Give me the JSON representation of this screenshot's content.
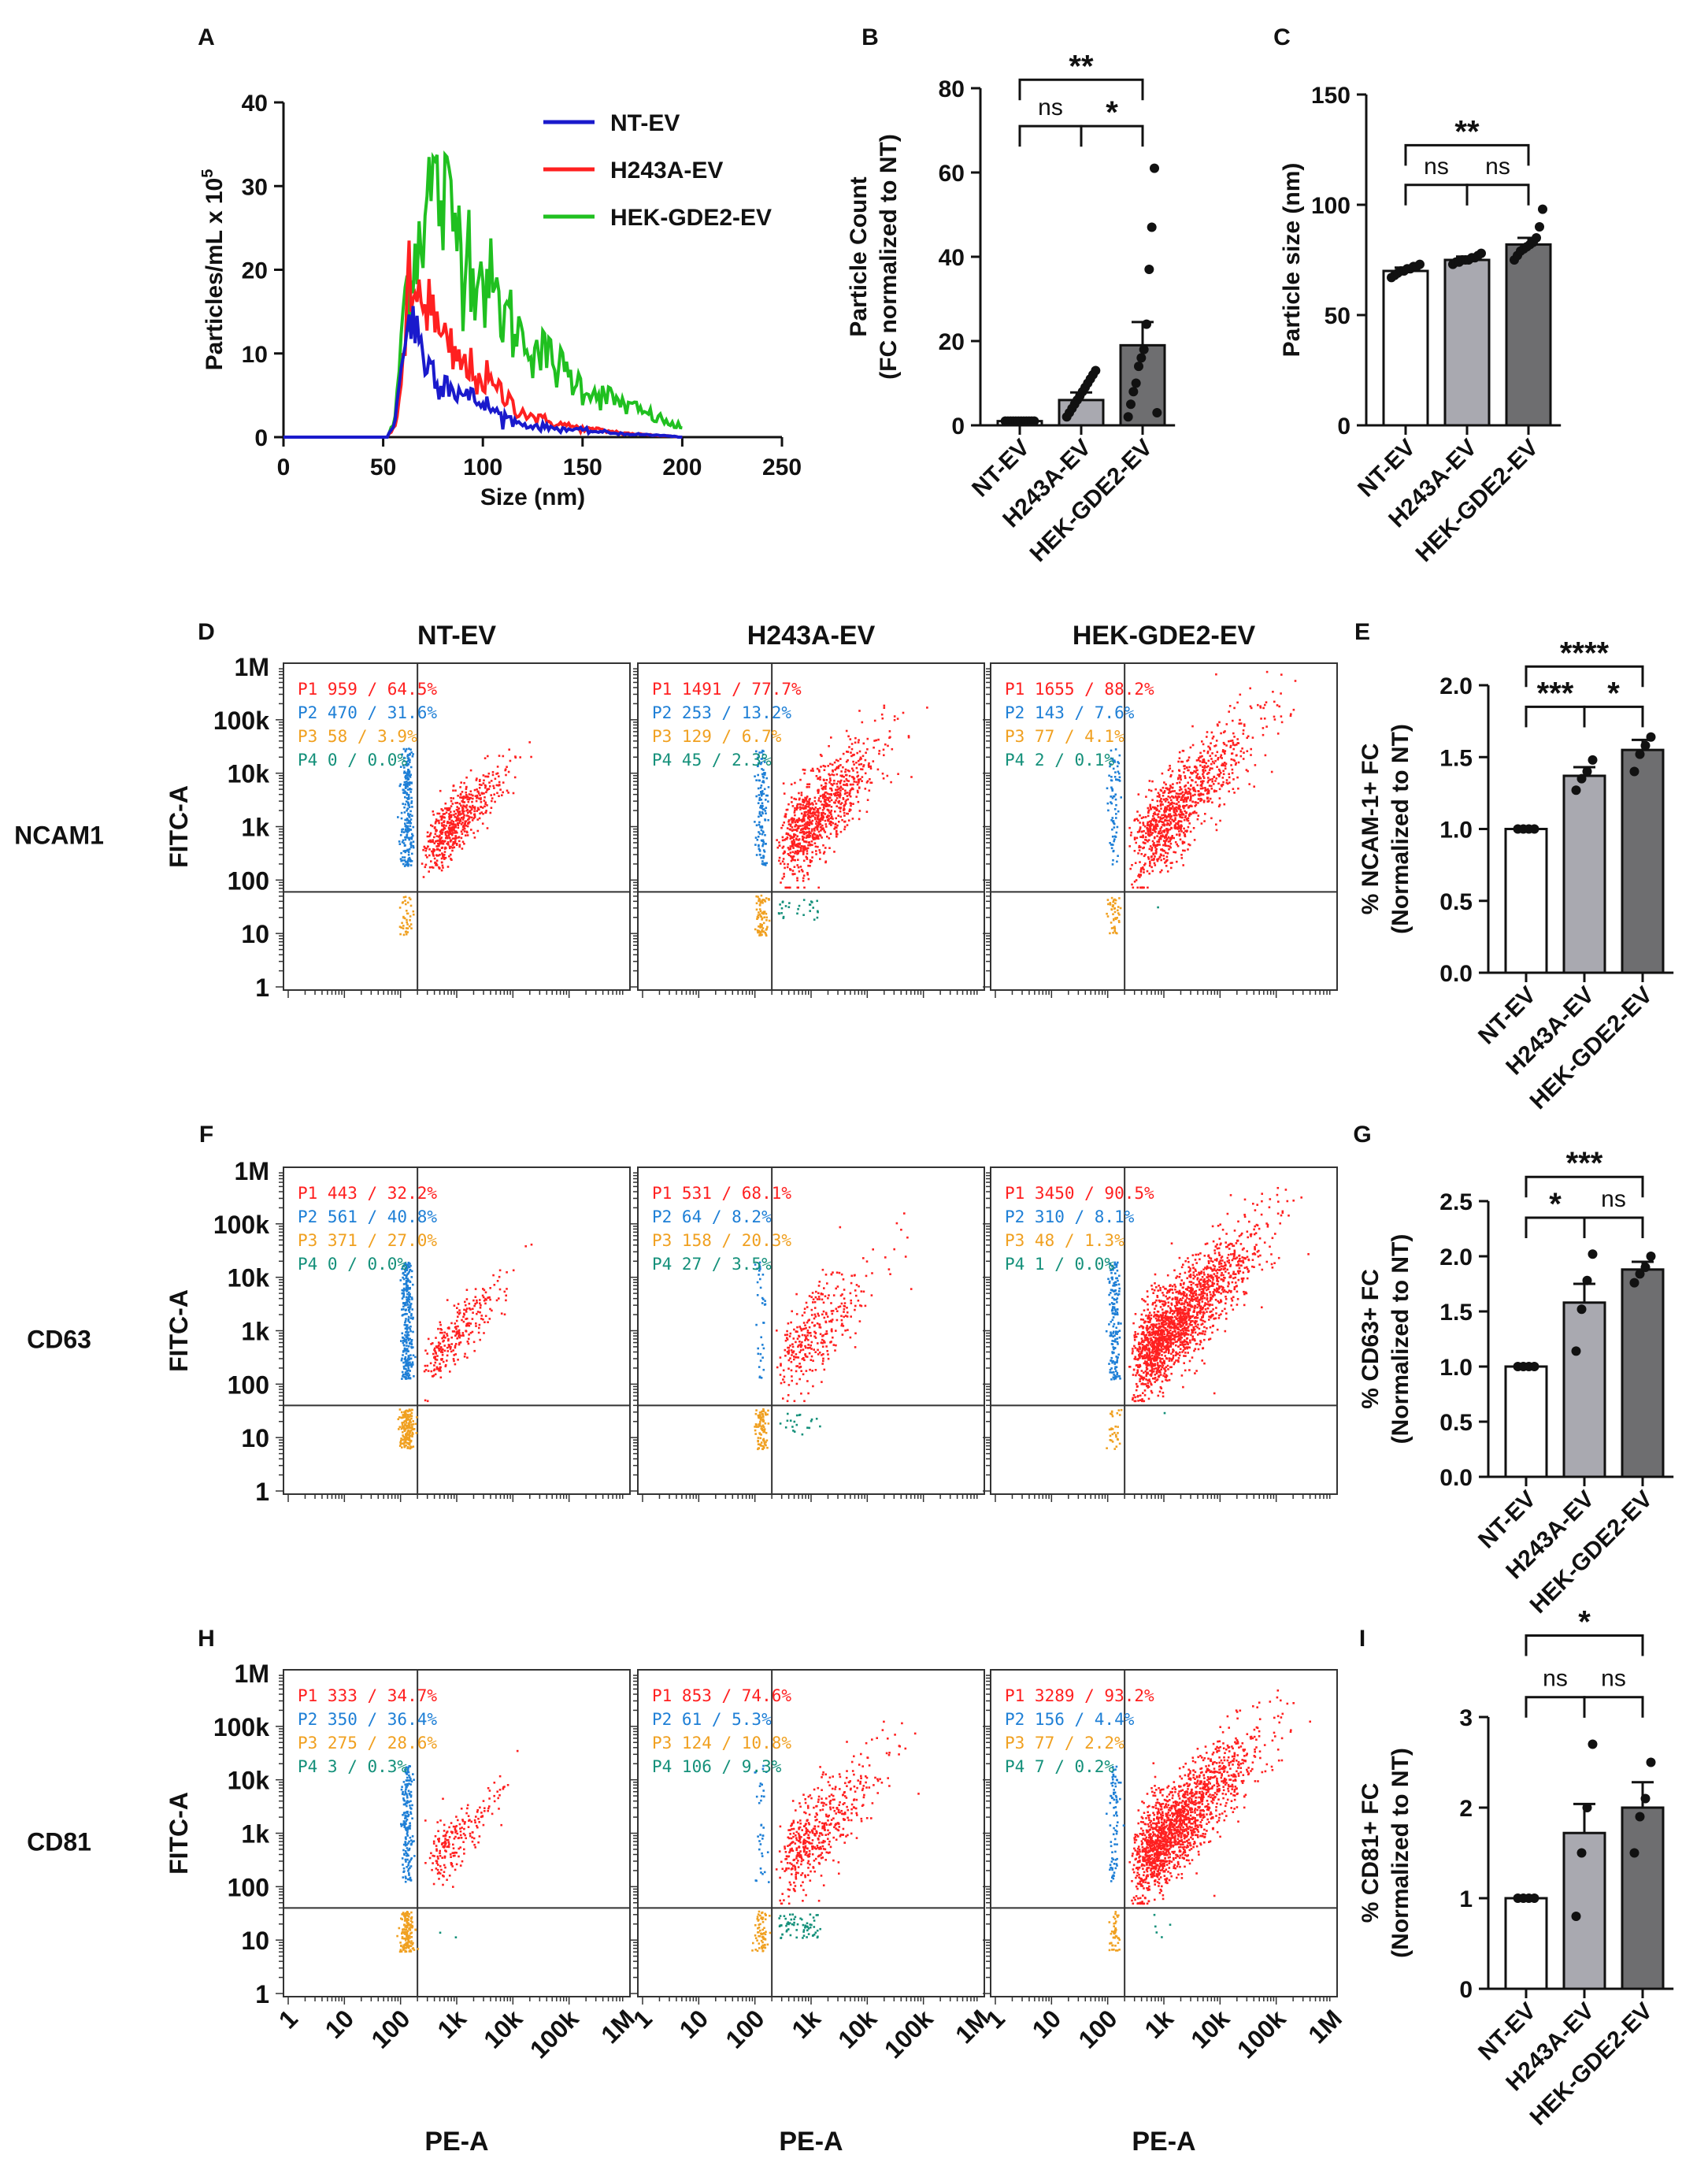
{
  "figure_labels": {
    "A": "A",
    "B": "B",
    "C": "C",
    "D": "D",
    "E": "E",
    "F": "F",
    "G": "G",
    "H": "H",
    "I": "I"
  },
  "colors": {
    "nt": "#1a1acc",
    "h243a": "#ff2020",
    "hek": "#20c020",
    "p1": "#ff2020",
    "p2": "#1e7fd6",
    "p3": "#f0a020",
    "p4": "#14907a",
    "bar_light": "#a9a9b0",
    "bar_dark": "#6e6e70"
  },
  "chart_data": [
    {
      "id": "A",
      "type": "line",
      "title": "",
      "xlabel": "Size (nm)",
      "ylabel_prefix": "Particles/mL x 10",
      "ylabel_exp": "5",
      "xlim": [
        0,
        250
      ],
      "ylim": [
        0,
        40
      ],
      "xticks": [
        0,
        50,
        100,
        150,
        200,
        250
      ],
      "yticks": [
        0,
        10,
        20,
        30,
        40
      ],
      "series": [
        {
          "name": "NT-EV",
          "color": "#1a1acc",
          "x": [
            0,
            45,
            52,
            56,
            60,
            63,
            66,
            70,
            75,
            80,
            90,
            100,
            110,
            120,
            130,
            140,
            150,
            160,
            170,
            180,
            190,
            200
          ],
          "values": [
            0,
            0,
            0,
            2,
            10,
            15,
            13,
            10,
            8,
            7,
            5,
            4,
            2.5,
            1.5,
            1.2,
            1,
            0.8,
            0.6,
            0.4,
            0.3,
            0.2,
            0
          ]
        },
        {
          "name": "H243A-EV",
          "color": "#ff2020",
          "x": [
            0,
            45,
            52,
            56,
            60,
            63,
            66,
            70,
            75,
            80,
            90,
            100,
            110,
            120,
            130,
            140,
            150,
            160,
            170,
            180,
            190,
            200
          ],
          "values": [
            0,
            0,
            0,
            1.5,
            8,
            17,
            16,
            18,
            14,
            11,
            8.5,
            7,
            5,
            3,
            2,
            1.5,
            1,
            0.8,
            0.5,
            0.3,
            0.2,
            0
          ]
        },
        {
          "name": "HEK-GDE2-EV",
          "color": "#20c020",
          "x": [
            0,
            45,
            52,
            56,
            60,
            63,
            66,
            70,
            75,
            80,
            90,
            100,
            110,
            120,
            130,
            140,
            150,
            160,
            170,
            180,
            190,
            200
          ],
          "values": [
            0,
            0,
            0,
            2,
            15,
            20,
            22,
            27,
            30,
            28,
            24,
            19,
            15,
            12,
            10,
            8,
            6,
            5,
            4,
            3,
            2,
            1
          ]
        }
      ]
    },
    {
      "id": "B",
      "type": "bar",
      "ylabel_line1": "Particle Count",
      "ylabel_line2": "(FC normalized to NT)",
      "ylim": [
        0,
        80
      ],
      "yticks": [
        0,
        20,
        40,
        60,
        80
      ],
      "categories": [
        "NT-EV",
        "H243A-EV",
        "HEK-GDE2-EV"
      ],
      "values": [
        1,
        6,
        19
      ],
      "errors": [
        0.2,
        1.8,
        5.5
      ],
      "points": [
        [
          1,
          1,
          1,
          1,
          1,
          1,
          1,
          1,
          1,
          1,
          1,
          1
        ],
        [
          2,
          3,
          4,
          5,
          6,
          7,
          8,
          9,
          10,
          11,
          12,
          13
        ],
        [
          2,
          5,
          8,
          10,
          14,
          16,
          18,
          24,
          37,
          47,
          61,
          3
        ]
      ],
      "comparisons": [
        {
          "from": 0,
          "to": 1,
          "label": "ns",
          "y": 71
        },
        {
          "from": 1,
          "to": 2,
          "label": "*",
          "y": 71
        },
        {
          "from": 0,
          "to": 2,
          "label": "**",
          "y": 82
        }
      ]
    },
    {
      "id": "C",
      "type": "bar",
      "ylabel_line1": "Particle size (nm)",
      "ylabel_line2": "",
      "ylim": [
        0,
        150
      ],
      "yticks": [
        0,
        50,
        100,
        150
      ],
      "categories": [
        "NT-EV",
        "H243A-EV",
        "HEK-GDE2-EV"
      ],
      "values": [
        70,
        75,
        82
      ],
      "errors": [
        1.5,
        1.5,
        3
      ],
      "points": [
        [
          67,
          68,
          69,
          70,
          70,
          71,
          71,
          72,
          72,
          73
        ],
        [
          73,
          74,
          74,
          75,
          75,
          75,
          76,
          76,
          77,
          78
        ],
        [
          75,
          77,
          79,
          80,
          81,
          82,
          83,
          85,
          90,
          98
        ]
      ],
      "comparisons": [
        {
          "from": 0,
          "to": 1,
          "label": "ns",
          "y": 109
        },
        {
          "from": 1,
          "to": 2,
          "label": "ns",
          "y": 109
        },
        {
          "from": 0,
          "to": 2,
          "label": "**",
          "y": 127
        }
      ]
    },
    {
      "id": "E",
      "type": "bar",
      "ylabel_line1": "% NCAM-1+ FC",
      "ylabel_line2": "(Normalized to NT)",
      "ylim": [
        0,
        2.0
      ],
      "yticks": [
        "0.0",
        "0.5",
        "1.0",
        "1.5",
        "2.0"
      ],
      "categories": [
        "NT-EV",
        "H243A-EV",
        "HEK-GDE2-EV"
      ],
      "values": [
        1.0,
        1.37,
        1.55
      ],
      "errors": [
        0.01,
        0.06,
        0.07
      ],
      "points": [
        [
          1.0,
          1.0,
          1.0,
          1.0
        ],
        [
          1.27,
          1.35,
          1.4,
          1.48
        ],
        [
          1.4,
          1.52,
          1.58,
          1.64
        ]
      ],
      "comparisons": [
        {
          "from": 0,
          "to": 1,
          "label": "***",
          "y": 1.85
        },
        {
          "from": 1,
          "to": 2,
          "label": "*",
          "y": 1.85
        },
        {
          "from": 0,
          "to": 2,
          "label": "****",
          "y": 2.13
        }
      ]
    },
    {
      "id": "G",
      "type": "bar",
      "ylabel_line1": "% CD63+ FC",
      "ylabel_line2": "(Normalized to NT)",
      "ylim": [
        0,
        2.5
      ],
      "yticks": [
        "0.0",
        "0.5",
        "1.0",
        "1.5",
        "2.0",
        "2.5"
      ],
      "categories": [
        "NT-EV",
        "H243A-EV",
        "HEK-GDE2-EV"
      ],
      "values": [
        1.0,
        1.58,
        1.88
      ],
      "errors": [
        0.01,
        0.17,
        0.07
      ],
      "points": [
        [
          1.0,
          1.0,
          1.0,
          1.0
        ],
        [
          1.14,
          1.52,
          1.78,
          2.02
        ],
        [
          1.76,
          1.84,
          1.9,
          2.0
        ]
      ],
      "comparisons": [
        {
          "from": 0,
          "to": 1,
          "label": "*",
          "y": 2.35
        },
        {
          "from": 1,
          "to": 2,
          "label": "ns",
          "y": 2.35
        },
        {
          "from": 0,
          "to": 2,
          "label": "***",
          "y": 2.72
        }
      ]
    },
    {
      "id": "I",
      "type": "bar",
      "ylabel_line1": "% CD81+ FC",
      "ylabel_line2": "(Normalized to NT)",
      "ylim": [
        0,
        3
      ],
      "yticks": [
        "0",
        "1",
        "2",
        "3"
      ],
      "categories": [
        "NT-EV",
        "H243A-EV",
        "HEK-GDE2-EV"
      ],
      "values": [
        1.0,
        1.72,
        2.0
      ],
      "errors": [
        0.01,
        0.32,
        0.28
      ],
      "points": [
        [
          1.0,
          1.0,
          1.0,
          1.0
        ],
        [
          0.8,
          1.5,
          2.0,
          2.7
        ],
        [
          1.5,
          1.9,
          2.1,
          2.5
        ]
      ],
      "comparisons": [
        {
          "from": 0,
          "to": 1,
          "label": "ns",
          "y": 3.22
        },
        {
          "from": 1,
          "to": 2,
          "label": "ns",
          "y": 3.22
        },
        {
          "from": 0,
          "to": 2,
          "label": "*",
          "y": 3.9
        }
      ]
    }
  ],
  "flow": {
    "columns": [
      "NT-EV",
      "H243A-EV",
      "HEK-GDE2-EV"
    ],
    "rows": [
      {
        "label": "NCAM1",
        "panel": "D",
        "gate_y": 60,
        "stats": [
          [
            "P1  959 / 64.5%",
            "P2  470 / 31.6%",
            "P3  58 / 3.9%",
            "P4  0 / 0.0%"
          ],
          [
            "P1  1491 / 77.7%",
            "P2  253 / 13.2%",
            "P3  129 / 6.7%",
            "P4  45 / 2.3%"
          ],
          [
            "P1  1655 / 88.2%",
            "P2  143 / 7.6%",
            "P3  77 / 4.1%",
            "P4  2 / 0.1%"
          ]
        ]
      },
      {
        "label": "CD63",
        "panel": "F",
        "gate_y": 40,
        "stats": [
          [
            "P1  443 / 32.2%",
            "P2  561 / 40.8%",
            "P3  371 / 27.0%",
            "P4  0 / 0.0%"
          ],
          [
            "P1  531 / 68.1%",
            "P2  64 / 8.2%",
            "P3  158 / 20.3%",
            "P4  27 / 3.5%"
          ],
          [
            "P1  3450 / 90.5%",
            "P2  310 / 8.1%",
            "P3  48 / 1.3%",
            "P4  1 / 0.0%"
          ]
        ]
      },
      {
        "label": "CD81",
        "panel": "H",
        "gate_y": 40,
        "stats": [
          [
            "P1  333 / 34.7%",
            "P2  350 / 36.4%",
            "P3  275 / 28.6%",
            "P4  3 / 0.3%"
          ],
          [
            "P1  853 / 74.6%",
            "P2  61 / 5.3%",
            "P3  124 / 10.8%",
            "P4  106 / 9.3%"
          ],
          [
            "P1  3289 / 93.2%",
            "P2  156 / 4.4%",
            "P3  77 / 2.2%",
            "P4  7 / 0.2%"
          ]
        ]
      }
    ],
    "y_axis_label": "FITC-A",
    "x_axis_label": "PE-A",
    "y_ticks": [
      "1",
      "10",
      "100",
      "1k",
      "10k",
      "100k",
      "1M"
    ],
    "x_ticks": [
      "1",
      "10",
      "100",
      "1k",
      "10k",
      "100k",
      "1M"
    ],
    "gate_x": 200,
    "p1_counts": [
      [
        560,
        900,
        1000
      ],
      [
        260,
        330,
        1800
      ],
      [
        200,
        500,
        1700
      ]
    ],
    "p2_counts": [
      [
        230,
        130,
        75
      ],
      [
        280,
        35,
        160
      ],
      [
        180,
        35,
        80
      ]
    ],
    "p3_counts": [
      [
        40,
        80,
        45
      ],
      [
        180,
        90,
        30
      ],
      [
        150,
        70,
        45
      ]
    ],
    "p4_counts": [
      [
        0,
        28,
        1
      ],
      [
        0,
        20,
        1
      ],
      [
        2,
        65,
        5
      ]
    ]
  }
}
